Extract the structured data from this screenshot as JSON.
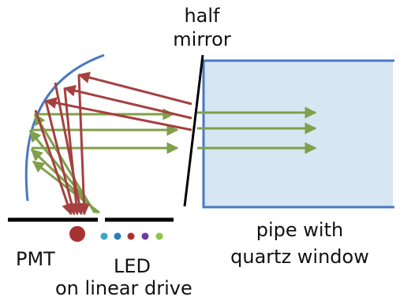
{
  "labels": {
    "half_mirror_line1": "half",
    "half_mirror_line2": "mirror",
    "pmt": "PMT",
    "led": "LED",
    "linear_drive": "on linear drive",
    "pipe_line1": "pipe with",
    "pipe_line2": "quartz window"
  },
  "colors": {
    "mirror_arc": "#4a78c2",
    "pipe_fill": "#d6e6f2",
    "pipe_border": "#4a78c2",
    "incoming_ray": "#7fa04a",
    "reflected_ray": "#a64040",
    "pmt_dot": "#a83232",
    "led_dots": [
      "#3aa7c9",
      "#2a7dbd",
      "#a83232",
      "#6a3f9e",
      "#8dc63f"
    ],
    "plate": "#000000",
    "half_mirror": "#000000"
  }
}
